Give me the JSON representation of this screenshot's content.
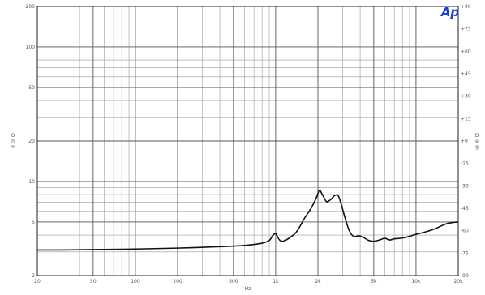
{
  "logo": {
    "text": "Ap",
    "color": "#1a3fd6"
  },
  "chart_data": {
    "type": "line",
    "title": "",
    "xlabel": "Hz",
    "ylabel_left": "Ohm",
    "ylabel_right": "Deg",
    "x_scale": "log",
    "y_scale": "log",
    "xlim": [
      20,
      20000
    ],
    "ylim_left": [
      2,
      200
    ],
    "ylim_right": [
      -90,
      90
    ],
    "grid": true,
    "x_ticks": [
      {
        "value": 20,
        "label": "20"
      },
      {
        "value": 50,
        "label": "50"
      },
      {
        "value": 100,
        "label": "100"
      },
      {
        "value": 200,
        "label": "200"
      },
      {
        "value": 500,
        "label": "500"
      },
      {
        "value": 1000,
        "label": "1k"
      },
      {
        "value": 2000,
        "label": "2k"
      },
      {
        "value": 5000,
        "label": "5k"
      },
      {
        "value": 10000,
        "label": "10k"
      },
      {
        "value": 20000,
        "label": "20k"
      }
    ],
    "y_left_ticks": [
      {
        "value": 2,
        "label": "2"
      },
      {
        "value": 5,
        "label": "5"
      },
      {
        "value": 10,
        "label": "10"
      },
      {
        "value": 20,
        "label": "20"
      },
      {
        "value": 50,
        "label": "50"
      },
      {
        "value": 100,
        "label": "100"
      },
      {
        "value": 200,
        "label": "200"
      }
    ],
    "y_right_ticks": [
      {
        "value": 90,
        "label": "+90"
      },
      {
        "value": 75,
        "label": "+75"
      },
      {
        "value": 60,
        "label": "+60"
      },
      {
        "value": 45,
        "label": "+45"
      },
      {
        "value": 30,
        "label": "+30"
      },
      {
        "value": 15,
        "label": "+15"
      },
      {
        "value": 0,
        "label": "+0"
      },
      {
        "value": -15,
        "label": "-15"
      },
      {
        "value": -30,
        "label": "-30"
      },
      {
        "value": -45,
        "label": "-45"
      },
      {
        "value": -60,
        "label": "-60"
      },
      {
        "value": -75,
        "label": "-75"
      },
      {
        "value": -90,
        "label": "-90"
      }
    ],
    "series": [
      {
        "name": "",
        "color": "#111111",
        "x": [
          20,
          30,
          50,
          100,
          200,
          400,
          600,
          800,
          900,
          950,
          1000,
          1050,
          1100,
          1200,
          1400,
          1600,
          1800,
          1950,
          2050,
          2150,
          2300,
          2450,
          2650,
          2800,
          2950,
          3150,
          3350,
          3600,
          3900,
          4200,
          4600,
          5000,
          5500,
          6000,
          6500,
          7000,
          8000,
          9000,
          10000,
          12000,
          14000,
          16000,
          18000,
          20000
        ],
        "y": [
          3.1,
          3.1,
          3.12,
          3.15,
          3.2,
          3.28,
          3.35,
          3.48,
          3.65,
          3.95,
          4.1,
          3.75,
          3.6,
          3.7,
          4.2,
          5.3,
          6.4,
          7.6,
          8.6,
          8.0,
          7.1,
          7.3,
          7.9,
          7.8,
          6.6,
          5.2,
          4.3,
          3.9,
          3.95,
          3.85,
          3.65,
          3.6,
          3.68,
          3.78,
          3.68,
          3.75,
          3.8,
          3.92,
          4.05,
          4.25,
          4.5,
          4.8,
          4.95,
          5.0
        ]
      }
    ]
  }
}
